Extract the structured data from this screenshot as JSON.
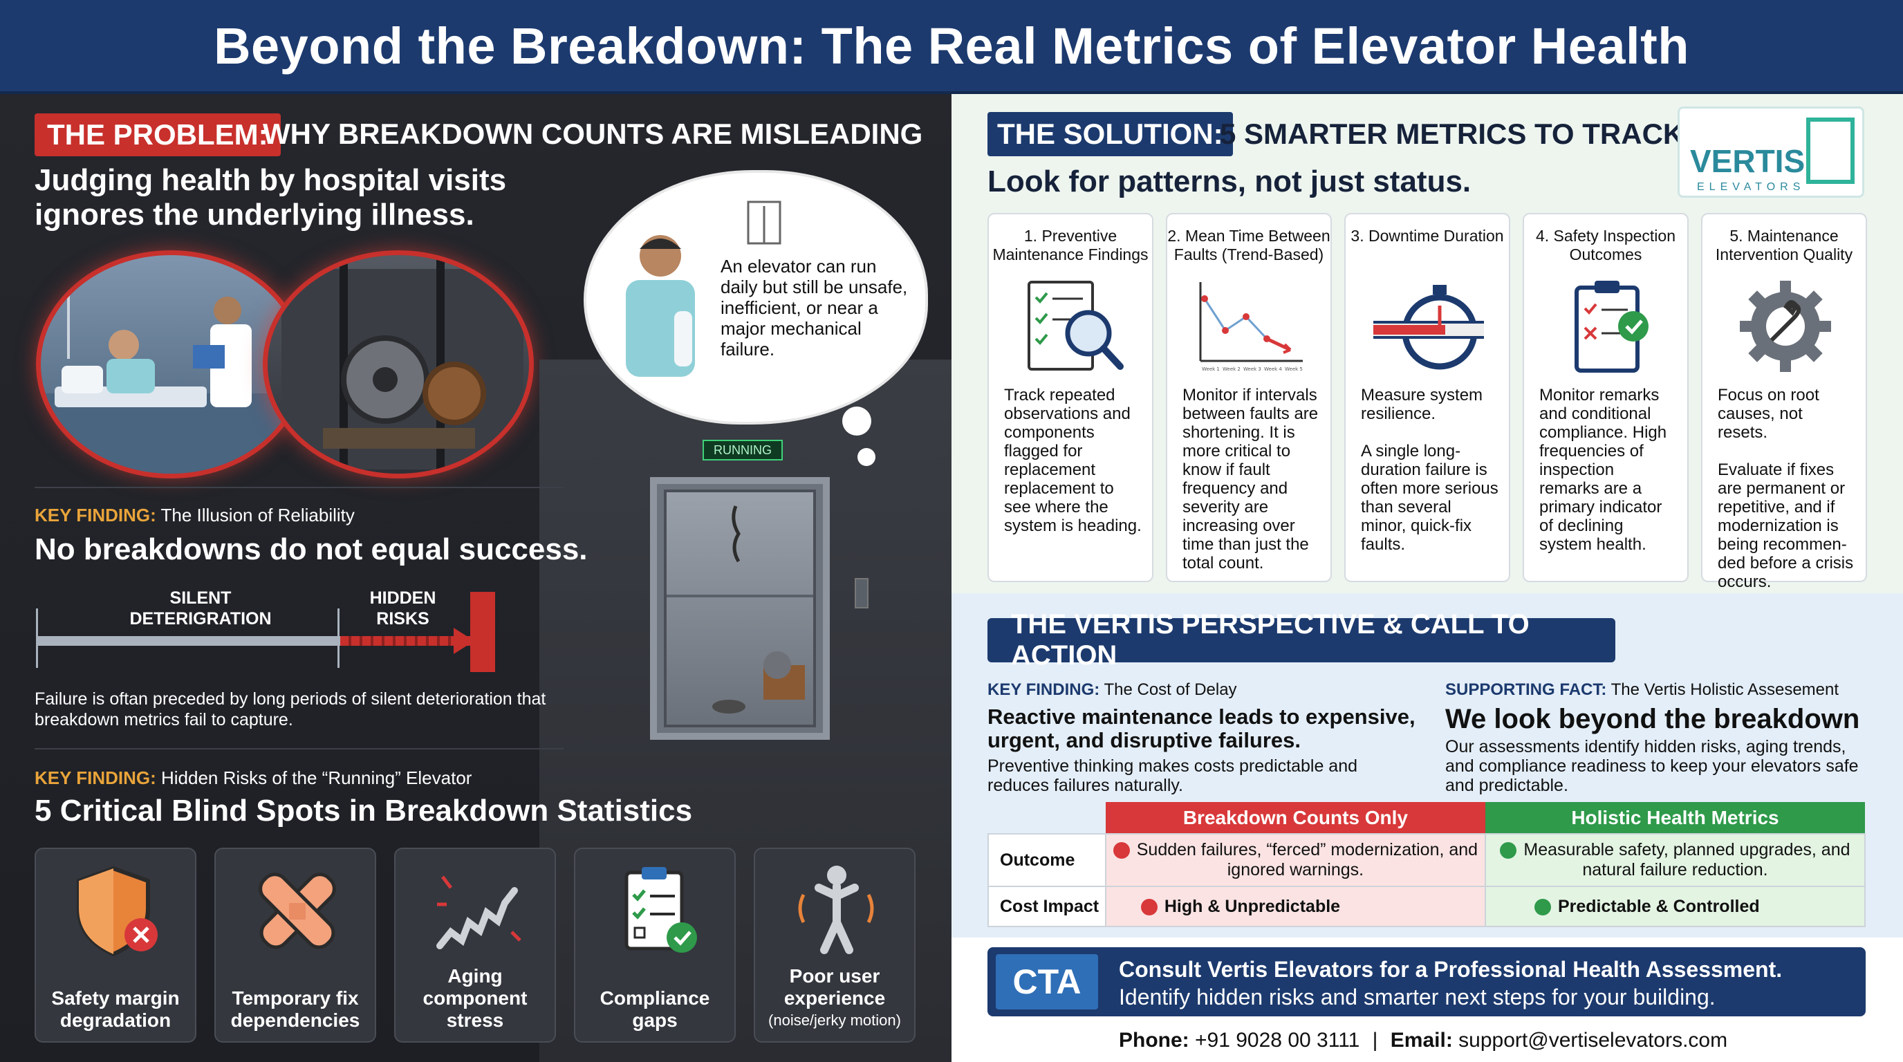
{
  "title": "Beyond the Breakdown: The Real Metrics of Elevator Health",
  "problem": {
    "tag": "THE PROBLEM:",
    "heading": "WHY BREAKDOWN COUNTS ARE MISLEADING",
    "subheading": "Judging health by hospital visits ignores the underlying illness.",
    "thought": "An elevator can run daily but still be unsafe, inefficient, or near a major mechanical failure.",
    "running_sign": "RUNNING",
    "finding1_label": "KEY FINDING:",
    "finding1_title": "The Illusion of Reliability",
    "finding1_statement": "No breakdowns do not equal success.",
    "bar_label_1": "SILENT DETERIGRATION",
    "bar_label_2": "HIDDEN RISKS",
    "bar_note": "Failure is oftan preceded by long periods of silent deterioration that breakdown metrics fail to capture.",
    "finding2_label": "KEY FINDING:",
    "finding2_title": "Hidden Risks of the “Running” Elevator",
    "blindspots_heading": "5 Critical Blind Spots in Breakdown Statistics",
    "blindspots": [
      {
        "label": "Safety margin degradation",
        "icon": "shield-x-icon"
      },
      {
        "label": "Temporary fix dependencies",
        "icon": "bandage-icon"
      },
      {
        "label": "Aging component stress",
        "icon": "spring-icon"
      },
      {
        "label": "Compliance gaps",
        "icon": "clipboard-check-icon"
      },
      {
        "label": "Poor user experience",
        "sub": "(noise/jerky motion)",
        "icon": "shaking-person-icon"
      }
    ]
  },
  "solution": {
    "tag": "THE SOLUTION:",
    "heading": "5 SMARTER METRICS TO TRACK",
    "subheading": "Look for patterns, not just status.",
    "logo_word": "VERTIS",
    "logo_small": "ELEVATORS",
    "metrics": [
      {
        "title": "1. Preventive Maintenance Findings",
        "desc": "Track repeated observations and components flagged for replacement replacement to see where the system is heading.",
        "icon": "checklist-magnifier-icon"
      },
      {
        "title": "2. Mean Time Between Faults (Trend-Based)",
        "desc": "Monitor if intervals between faults are shortening. It is more critical to know if fault frequency and severity are increasing over time than just the total count.",
        "icon": "trend-chart-icon"
      },
      {
        "title": "3. Downtime Duration",
        "desc": "Measure system resilience.\n\nA single long-duration failure is often more serious than several minor, quick-fix faults.",
        "icon": "stopwatch-icon"
      },
      {
        "title": "4. Safety Inspection Outcomes",
        "desc": "Monitor remarks and conditional compliance. High frequencies of inspection remarks are a primary indicator of declining system health.",
        "icon": "inspection-clipboard-icon"
      },
      {
        "title": "5. Maintenance Intervention Quality",
        "desc": "Focus on root causes, not resets.\n\nEvaluate if fixes are permanent or repetitive, and if modernization is being recommen-ded before a crisis occurs.",
        "icon": "gear-wrench-icon"
      }
    ],
    "chart_week_labels": [
      "Week 1",
      "Week 2",
      "Week 3",
      "Week 4",
      "Week 5"
    ]
  },
  "perspective": {
    "tag": "THE VERTIS PERSPECTIVE & CALL TO ACTION",
    "left_label": "KEY FINDING:",
    "left_title": "The Cost of Delay",
    "left_heading": "Reactive maintenance leads to expensive, urgent, and disruptive failures.",
    "left_body": "Preventive thinking makes costs predictable and reduces failures naturally.",
    "right_label": "SUPPORTING FACT:",
    "right_title": "The Vertis Holistic Assesement",
    "right_heading": "We look beyond the breakdown",
    "right_body": "Our assessments identify hidden risks, aging trends, and compliance readiness to keep your elevators safe and predictable.",
    "table": {
      "col_bad": "Breakdown Counts Only",
      "col_good": "Holistic Health Metrics",
      "rows": [
        {
          "label": "Outcome",
          "bad": "Sudden failures, “ferced” modernization, and ignored warnings.",
          "good": "Measurable safety, planned upgrades, and natural failure reduction."
        },
        {
          "label": "Cost Impact",
          "bad": "High & Unpredictable",
          "good": "Predictable & Controlled"
        }
      ]
    },
    "colors": {
      "bad": "#d8383a",
      "good": "#2e9a4a",
      "navy": "#1c3a6e"
    }
  },
  "cta": {
    "badge": "CTA",
    "line1": "Consult Vertis Elevators for a Professional Health Assessment.",
    "line2": "Identify hidden risks and smarter next steps for your building.",
    "phone_label": "Phone:",
    "phone": "+91 9028 00 3111",
    "separator": "|",
    "email_label": "Email:",
    "email": "support@vertiselevators.com"
  }
}
